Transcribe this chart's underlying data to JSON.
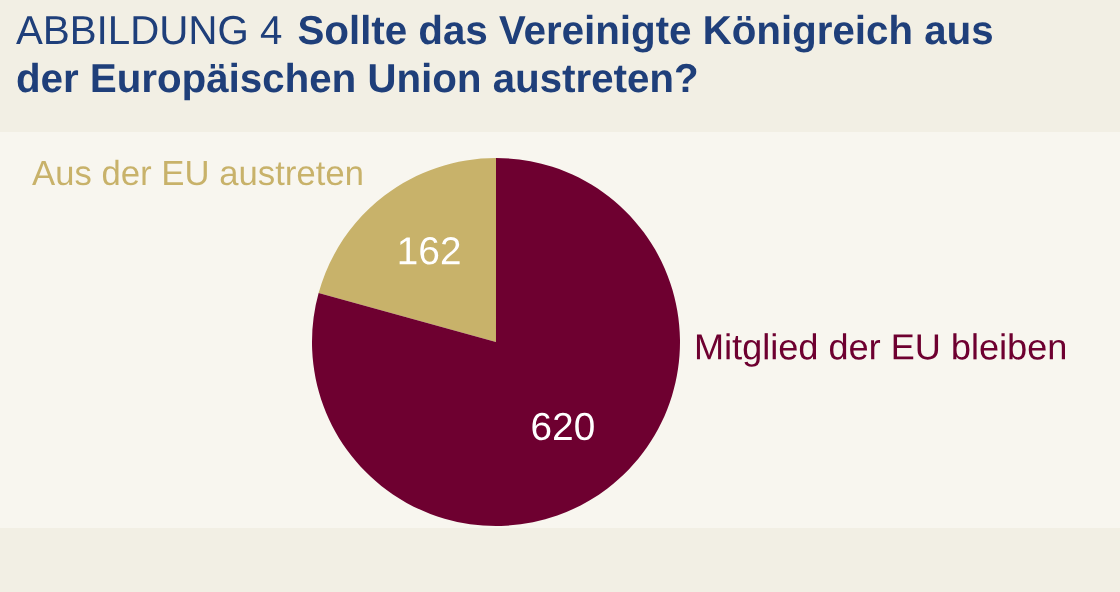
{
  "chart_data": {
    "type": "pie",
    "title": "Sollte das Vereinigte Königreich aus\nder Europäischen Union austreten?",
    "annotations": [
      "ABBILDUNG 4"
    ],
    "categories": [
      "Aus der EU austreten",
      "Mitglied der EU bleiben"
    ],
    "values": [
      162,
      620
    ],
    "colors": [
      "#c8b26a",
      "#6e0030"
    ],
    "data_labels": true
  }
}
